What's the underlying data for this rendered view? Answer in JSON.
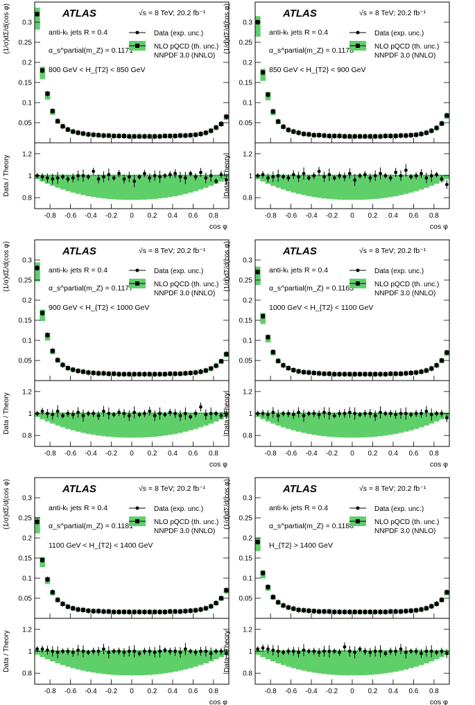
{
  "figure": {
    "experiment": "ATLAS",
    "energy_label": "√s = 8 TeV; 20.2 fb⁻¹",
    "jet_label": "anti-kₜ jets R = 0.4",
    "pdf_label": "NNPDF 3.0 (NNLO)",
    "legend_data": "Data (exp. unc.)",
    "legend_theory": "NLO pQCD (th. unc.)",
    "xlabel": "cos φ",
    "ylabel_top": "(1/σ)dΣ/d(cos φ)",
    "ylabel_ratio": "Data / Theory",
    "colors": {
      "band": "#5fcf6a",
      "marker": "#000000",
      "line": "#000000"
    }
  },
  "chart_data": [
    {
      "type": "scatter",
      "title": "800 GeV < H_T2 < 850 GeV",
      "bin_label": "800 GeV < H_{T2} < 850 GeV",
      "alpha_label": "α_s^partial(m_Z) = 0.1171",
      "alpha_value": "0.1171",
      "x": [
        -0.95,
        -0.9,
        -0.85,
        -0.8,
        -0.75,
        -0.7,
        -0.65,
        -0.6,
        -0.55,
        -0.5,
        -0.45,
        -0.4,
        -0.35,
        -0.3,
        -0.25,
        -0.2,
        -0.15,
        -0.1,
        -0.05,
        0.0,
        0.05,
        0.1,
        0.15,
        0.2,
        0.25,
        0.3,
        0.35,
        0.4,
        0.45,
        0.5,
        0.55,
        0.6,
        0.65,
        0.7,
        0.75,
        0.8,
        0.85,
        0.9
      ],
      "series_top": [
        0.32,
        0.18,
        0.122,
        0.079,
        0.054,
        0.041,
        0.033,
        0.028,
        0.025,
        0.023,
        0.021,
        0.02,
        0.019,
        0.018,
        0.018,
        0.017,
        0.017,
        0.017,
        0.016,
        0.016,
        0.016,
        0.016,
        0.016,
        0.016,
        0.016,
        0.017,
        0.017,
        0.017,
        0.018,
        0.018,
        0.019,
        0.02,
        0.022,
        0.025,
        0.03,
        0.038,
        0.047,
        0.065
      ],
      "ratio": [
        1.0,
        0.99,
        0.98,
        0.97,
        0.98,
        0.99,
        0.97,
        0.98,
        1.0,
        1.0,
        0.99,
        1.04,
        0.97,
        0.99,
        1.01,
        0.98,
        1.02,
        0.97,
        0.99,
        0.95,
        0.99,
        1.02,
        0.98,
        1.0,
        0.99,
        1.0,
        1.01,
        1.02,
        0.99,
        0.98,
        1.02,
        0.99,
        1.03,
        0.98,
        1.0,
        0.95,
        1.01,
        0.96
      ],
      "ylim": [
        0,
        0.35
      ],
      "ylim_ratio": [
        0.7,
        1.3
      ],
      "xlim": [
        -0.95,
        0.95
      ]
    },
    {
      "type": "scatter",
      "title": "850 GeV < H_T2 < 900 GeV",
      "bin_label": "850 GeV < H_{T2} < 900 GeV",
      "alpha_label": "α_s^partial(m_Z) = 0.1178",
      "alpha_value": "0.1178",
      "x": [
        -0.95,
        -0.9,
        -0.85,
        -0.8,
        -0.75,
        -0.7,
        -0.65,
        -0.6,
        -0.55,
        -0.5,
        -0.45,
        -0.4,
        -0.35,
        -0.3,
        -0.25,
        -0.2,
        -0.15,
        -0.1,
        -0.05,
        0.0,
        0.05,
        0.1,
        0.15,
        0.2,
        0.25,
        0.3,
        0.35,
        0.4,
        0.45,
        0.5,
        0.55,
        0.6,
        0.65,
        0.7,
        0.75,
        0.8,
        0.85,
        0.9
      ],
      "series_top": [
        0.3,
        0.175,
        0.12,
        0.078,
        0.053,
        0.04,
        0.032,
        0.028,
        0.025,
        0.022,
        0.021,
        0.019,
        0.019,
        0.018,
        0.017,
        0.017,
        0.017,
        0.016,
        0.016,
        0.016,
        0.016,
        0.016,
        0.016,
        0.016,
        0.016,
        0.017,
        0.017,
        0.017,
        0.018,
        0.018,
        0.019,
        0.02,
        0.022,
        0.025,
        0.03,
        0.037,
        0.048,
        0.068
      ],
      "ratio": [
        1.0,
        1.01,
        0.98,
        0.99,
        1.0,
        0.99,
        0.98,
        1.01,
        0.99,
        1.02,
        0.98,
        1.0,
        1.04,
        0.99,
        1.01,
        0.98,
        1.0,
        0.99,
        1.02,
        0.96,
        1.0,
        1.01,
        0.98,
        1.0,
        1.02,
        1.0,
        0.98,
        1.03,
        1.0,
        1.05,
        0.99,
        1.0,
        1.02,
        0.98,
        1.0,
        1.01,
        0.97,
        0.92
      ],
      "ylim": [
        0,
        0.35
      ],
      "ylim_ratio": [
        0.7,
        1.3
      ],
      "xlim": [
        -0.95,
        0.95
      ]
    },
    {
      "type": "scatter",
      "title": "900 GeV < H_T2 < 1000 GeV",
      "bin_label": "900 GeV < H_{T2} < 1000 GeV",
      "alpha_label": "α_s^partial(m_Z) = 0.1177",
      "alpha_value": "0.1177",
      "x": [
        -0.95,
        -0.9,
        -0.85,
        -0.8,
        -0.75,
        -0.7,
        -0.65,
        -0.6,
        -0.55,
        -0.5,
        -0.45,
        -0.4,
        -0.35,
        -0.3,
        -0.25,
        -0.2,
        -0.15,
        -0.1,
        -0.05,
        0.0,
        0.05,
        0.1,
        0.15,
        0.2,
        0.25,
        0.3,
        0.35,
        0.4,
        0.45,
        0.5,
        0.55,
        0.6,
        0.65,
        0.7,
        0.75,
        0.8,
        0.85,
        0.9
      ],
      "series_top": [
        0.28,
        0.168,
        0.113,
        0.074,
        0.051,
        0.039,
        0.031,
        0.027,
        0.024,
        0.022,
        0.02,
        0.019,
        0.018,
        0.018,
        0.017,
        0.017,
        0.016,
        0.016,
        0.016,
        0.016,
        0.016,
        0.016,
        0.016,
        0.016,
        0.016,
        0.016,
        0.017,
        0.017,
        0.017,
        0.018,
        0.019,
        0.02,
        0.022,
        0.025,
        0.03,
        0.037,
        0.048,
        0.066
      ],
      "ratio": [
        1.0,
        1.02,
        1.0,
        0.99,
        1.02,
        0.98,
        1.0,
        0.99,
        1.01,
        0.98,
        1.0,
        1.0,
        0.98,
        1.02,
        1.0,
        0.99,
        1.01,
        1.0,
        0.98,
        1.01,
        0.99,
        1.0,
        1.02,
        0.98,
        1.0,
        0.99,
        1.01,
        1.0,
        0.98,
        1.0,
        0.97,
        1.0,
        1.06,
        0.99,
        1.0,
        1.0,
        0.98,
        0.99
      ],
      "ylim": [
        0,
        0.35
      ],
      "ylim_ratio": [
        0.7,
        1.3
      ],
      "xlim": [
        -0.95,
        0.95
      ]
    },
    {
      "type": "scatter",
      "title": "1000 GeV < H_T2 < 1100 GeV",
      "bin_label": "1000 GeV < H_{T2} < 1100 GeV",
      "alpha_label": "α_s^partial(m_Z) = 0.1163",
      "alpha_value": "0.1163",
      "x": [
        -0.95,
        -0.9,
        -0.85,
        -0.8,
        -0.75,
        -0.7,
        -0.65,
        -0.6,
        -0.55,
        -0.5,
        -0.45,
        -0.4,
        -0.35,
        -0.3,
        -0.25,
        -0.2,
        -0.15,
        -0.1,
        -0.05,
        0.0,
        0.05,
        0.1,
        0.15,
        0.2,
        0.25,
        0.3,
        0.35,
        0.4,
        0.45,
        0.5,
        0.55,
        0.6,
        0.65,
        0.7,
        0.75,
        0.8,
        0.85,
        0.9
      ],
      "series_top": [
        0.27,
        0.16,
        0.108,
        0.071,
        0.049,
        0.038,
        0.031,
        0.026,
        0.023,
        0.021,
        0.02,
        0.019,
        0.018,
        0.017,
        0.017,
        0.016,
        0.016,
        0.016,
        0.016,
        0.016,
        0.016,
        0.016,
        0.016,
        0.016,
        0.016,
        0.016,
        0.017,
        0.017,
        0.017,
        0.018,
        0.019,
        0.02,
        0.022,
        0.025,
        0.03,
        0.038,
        0.05,
        0.07
      ],
      "ratio": [
        1.0,
        1.0,
        0.99,
        1.01,
        0.98,
        1.0,
        1.0,
        0.99,
        1.01,
        0.98,
        1.0,
        1.0,
        0.99,
        1.01,
        1.0,
        0.98,
        1.0,
        1.0,
        1.01,
        1.0,
        0.99,
        1.0,
        1.0,
        0.98,
        1.01,
        1.0,
        1.0,
        0.99,
        1.0,
        1.0,
        0.99,
        1.0,
        1.0,
        1.02,
        0.99,
        1.0,
        1.0,
        0.96
      ],
      "ylim": [
        0,
        0.35
      ],
      "ylim_ratio": [
        0.7,
        1.3
      ],
      "xlim": [
        -0.95,
        0.95
      ]
    },
    {
      "type": "scatter",
      "title": "1100 GeV < H_T2 < 1400 GeV",
      "bin_label": "1100 GeV < H_{T2} < 1400 GeV",
      "alpha_label": "α_s^partial(m_Z) = 0.1181",
      "alpha_value": "0.1181",
      "x": [
        -0.95,
        -0.9,
        -0.85,
        -0.8,
        -0.75,
        -0.7,
        -0.65,
        -0.6,
        -0.55,
        -0.5,
        -0.45,
        -0.4,
        -0.35,
        -0.3,
        -0.25,
        -0.2,
        -0.15,
        -0.1,
        -0.05,
        0.0,
        0.05,
        0.1,
        0.15,
        0.2,
        0.25,
        0.3,
        0.35,
        0.4,
        0.45,
        0.5,
        0.55,
        0.6,
        0.65,
        0.7,
        0.75,
        0.8,
        0.85,
        0.9
      ],
      "series_top": [
        0.24,
        0.145,
        0.097,
        0.065,
        0.046,
        0.036,
        0.029,
        0.025,
        0.022,
        0.021,
        0.019,
        0.018,
        0.018,
        0.017,
        0.017,
        0.016,
        0.016,
        0.016,
        0.016,
        0.016,
        0.016,
        0.016,
        0.016,
        0.016,
        0.016,
        0.016,
        0.017,
        0.017,
        0.017,
        0.018,
        0.019,
        0.02,
        0.022,
        0.025,
        0.03,
        0.038,
        0.05,
        0.07
      ],
      "ratio": [
        1.02,
        1.02,
        1.01,
        1.0,
        0.99,
        1.0,
        1.0,
        0.99,
        1.01,
        1.0,
        0.99,
        1.0,
        1.0,
        1.02,
        0.99,
        1.0,
        1.0,
        0.99,
        1.0,
        1.0,
        0.98,
        1.0,
        1.0,
        0.99,
        1.0,
        1.01,
        1.0,
        1.0,
        0.99,
        1.02,
        1.0,
        0.99,
        1.0,
        1.0,
        0.98,
        1.0,
        1.0,
        0.98
      ],
      "ylim": [
        0,
        0.35
      ],
      "ylim_ratio": [
        0.7,
        1.3
      ],
      "xlim": [
        -0.95,
        0.95
      ]
    },
    {
      "type": "scatter",
      "title": "H_T2 > 1400 GeV",
      "bin_label": "H_{T2} > 1400 GeV",
      "alpha_label": "α_s^partial(m_Z) = 0.1186",
      "alpha_value": "0.1186",
      "x": [
        -0.95,
        -0.9,
        -0.85,
        -0.8,
        -0.75,
        -0.7,
        -0.65,
        -0.6,
        -0.55,
        -0.5,
        -0.45,
        -0.4,
        -0.35,
        -0.3,
        -0.25,
        -0.2,
        -0.15,
        -0.1,
        -0.05,
        0.0,
        0.05,
        0.1,
        0.15,
        0.2,
        0.25,
        0.3,
        0.35,
        0.4,
        0.45,
        0.5,
        0.55,
        0.6,
        0.65,
        0.7,
        0.75,
        0.8,
        0.85,
        0.9
      ],
      "series_top": [
        0.19,
        0.113,
        0.078,
        0.053,
        0.04,
        0.032,
        0.027,
        0.024,
        0.021,
        0.02,
        0.019,
        0.018,
        0.017,
        0.017,
        0.017,
        0.016,
        0.016,
        0.016,
        0.016,
        0.016,
        0.016,
        0.016,
        0.016,
        0.016,
        0.016,
        0.016,
        0.017,
        0.017,
        0.017,
        0.018,
        0.019,
        0.02,
        0.022,
        0.025,
        0.03,
        0.036,
        0.046,
        0.065
      ],
      "ratio": [
        1.02,
        1.03,
        1.02,
        1.01,
        1.0,
        0.99,
        1.0,
        1.0,
        0.99,
        1.01,
        1.0,
        1.0,
        0.99,
        1.0,
        1.0,
        1.0,
        0.99,
        1.04,
        1.0,
        0.99,
        1.02,
        1.0,
        0.99,
        1.0,
        1.0,
        0.98,
        1.0,
        1.0,
        1.02,
        0.99,
        1.0,
        1.0,
        0.98,
        1.0,
        1.0,
        0.99,
        1.0,
        0.98
      ],
      "ylim": [
        0,
        0.35
      ],
      "ylim_ratio": [
        0.7,
        1.3
      ],
      "xlim": [
        -0.95,
        0.95
      ]
    }
  ]
}
